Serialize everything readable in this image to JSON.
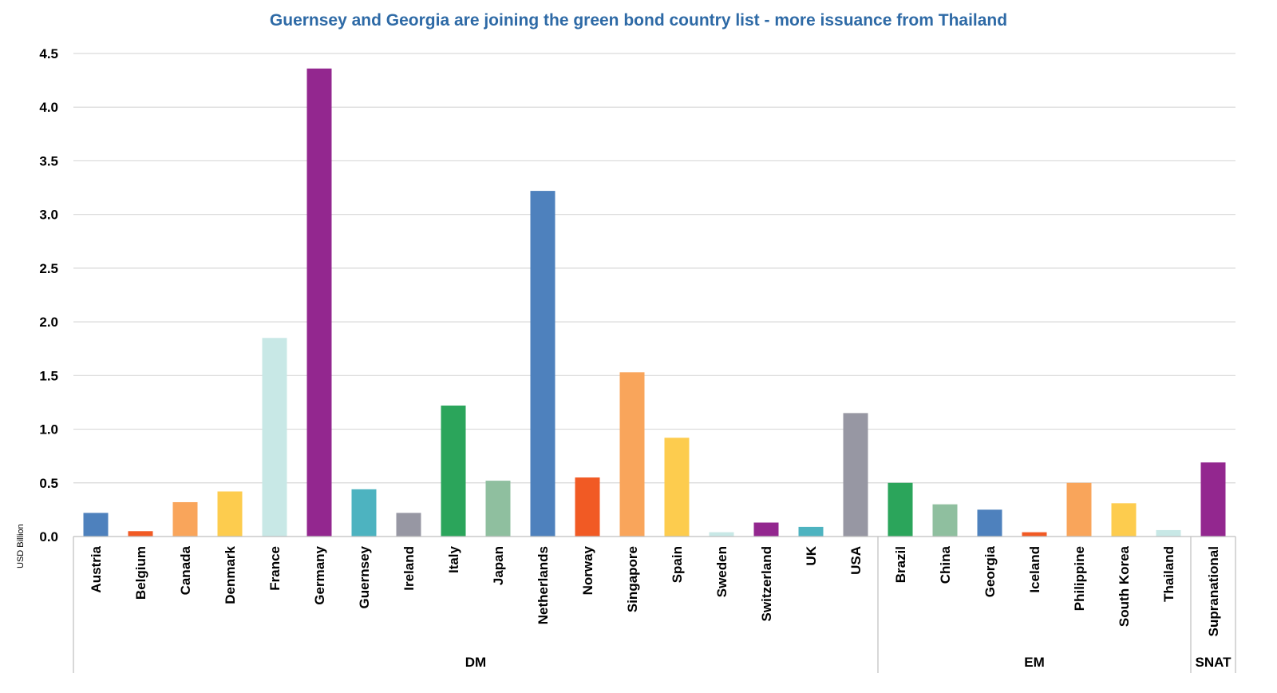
{
  "chart_data": {
    "type": "bar",
    "title": "Guernsey and Georgia are joining the green bond country list - more issuance from Thailand",
    "xlabel": "",
    "ylabel": "USD Billion",
    "ylim": [
      0,
      4.5
    ],
    "yticks": [
      "0.0",
      "0.5",
      "1.0",
      "1.5",
      "2.0",
      "2.5",
      "3.0",
      "3.5",
      "4.0",
      "4.5"
    ],
    "grid": "horizontal",
    "legend": "none",
    "categories": [
      "Austria",
      "Belgium",
      "Canada",
      "Denmark",
      "France",
      "Germany",
      "Guernsey",
      "Ireland",
      "Italy",
      "Japan",
      "Netherlands",
      "Norway",
      "Singapore",
      "Spain",
      "Sweden",
      "Switzerland",
      "UK",
      "USA",
      "Brazil",
      "China",
      "Georgia",
      "Iceland",
      "Philippine",
      "South Korea",
      "Thailand",
      "Supranational"
    ],
    "values": [
      0.22,
      0.05,
      0.32,
      0.42,
      1.85,
      4.36,
      0.44,
      0.22,
      1.22,
      0.52,
      3.22,
      0.55,
      1.53,
      0.92,
      0.04,
      0.13,
      0.09,
      1.15,
      0.5,
      0.3,
      0.25,
      0.04,
      0.5,
      0.31,
      0.06,
      0.69
    ],
    "colors": [
      "#4e81bd",
      "#f15a24",
      "#f9a55b",
      "#fdcc4e",
      "#c8e8e6",
      "#93278f",
      "#4db3c0",
      "#9797a3",
      "#2ba55b",
      "#8fbf9f",
      "#4e81bd",
      "#f15a24",
      "#f9a55b",
      "#fdcc4e",
      "#c8e8e6",
      "#93278f",
      "#4db3c0",
      "#9797a3",
      "#2ba55b",
      "#8fbf9f",
      "#4e81bd",
      "#f15a24",
      "#f9a55b",
      "#fdcc4e",
      "#c8e8e6",
      "#93278f"
    ],
    "groups": [
      {
        "name": "DM",
        "start": 0,
        "end": 17
      },
      {
        "name": "EM",
        "start": 18,
        "end": 24
      },
      {
        "name": "SNAT",
        "start": 25,
        "end": 25
      }
    ]
  },
  "colors": {
    "title": "#2e6aa6",
    "gridline": "#d9d9d9",
    "axis": "#bfbfbf"
  }
}
